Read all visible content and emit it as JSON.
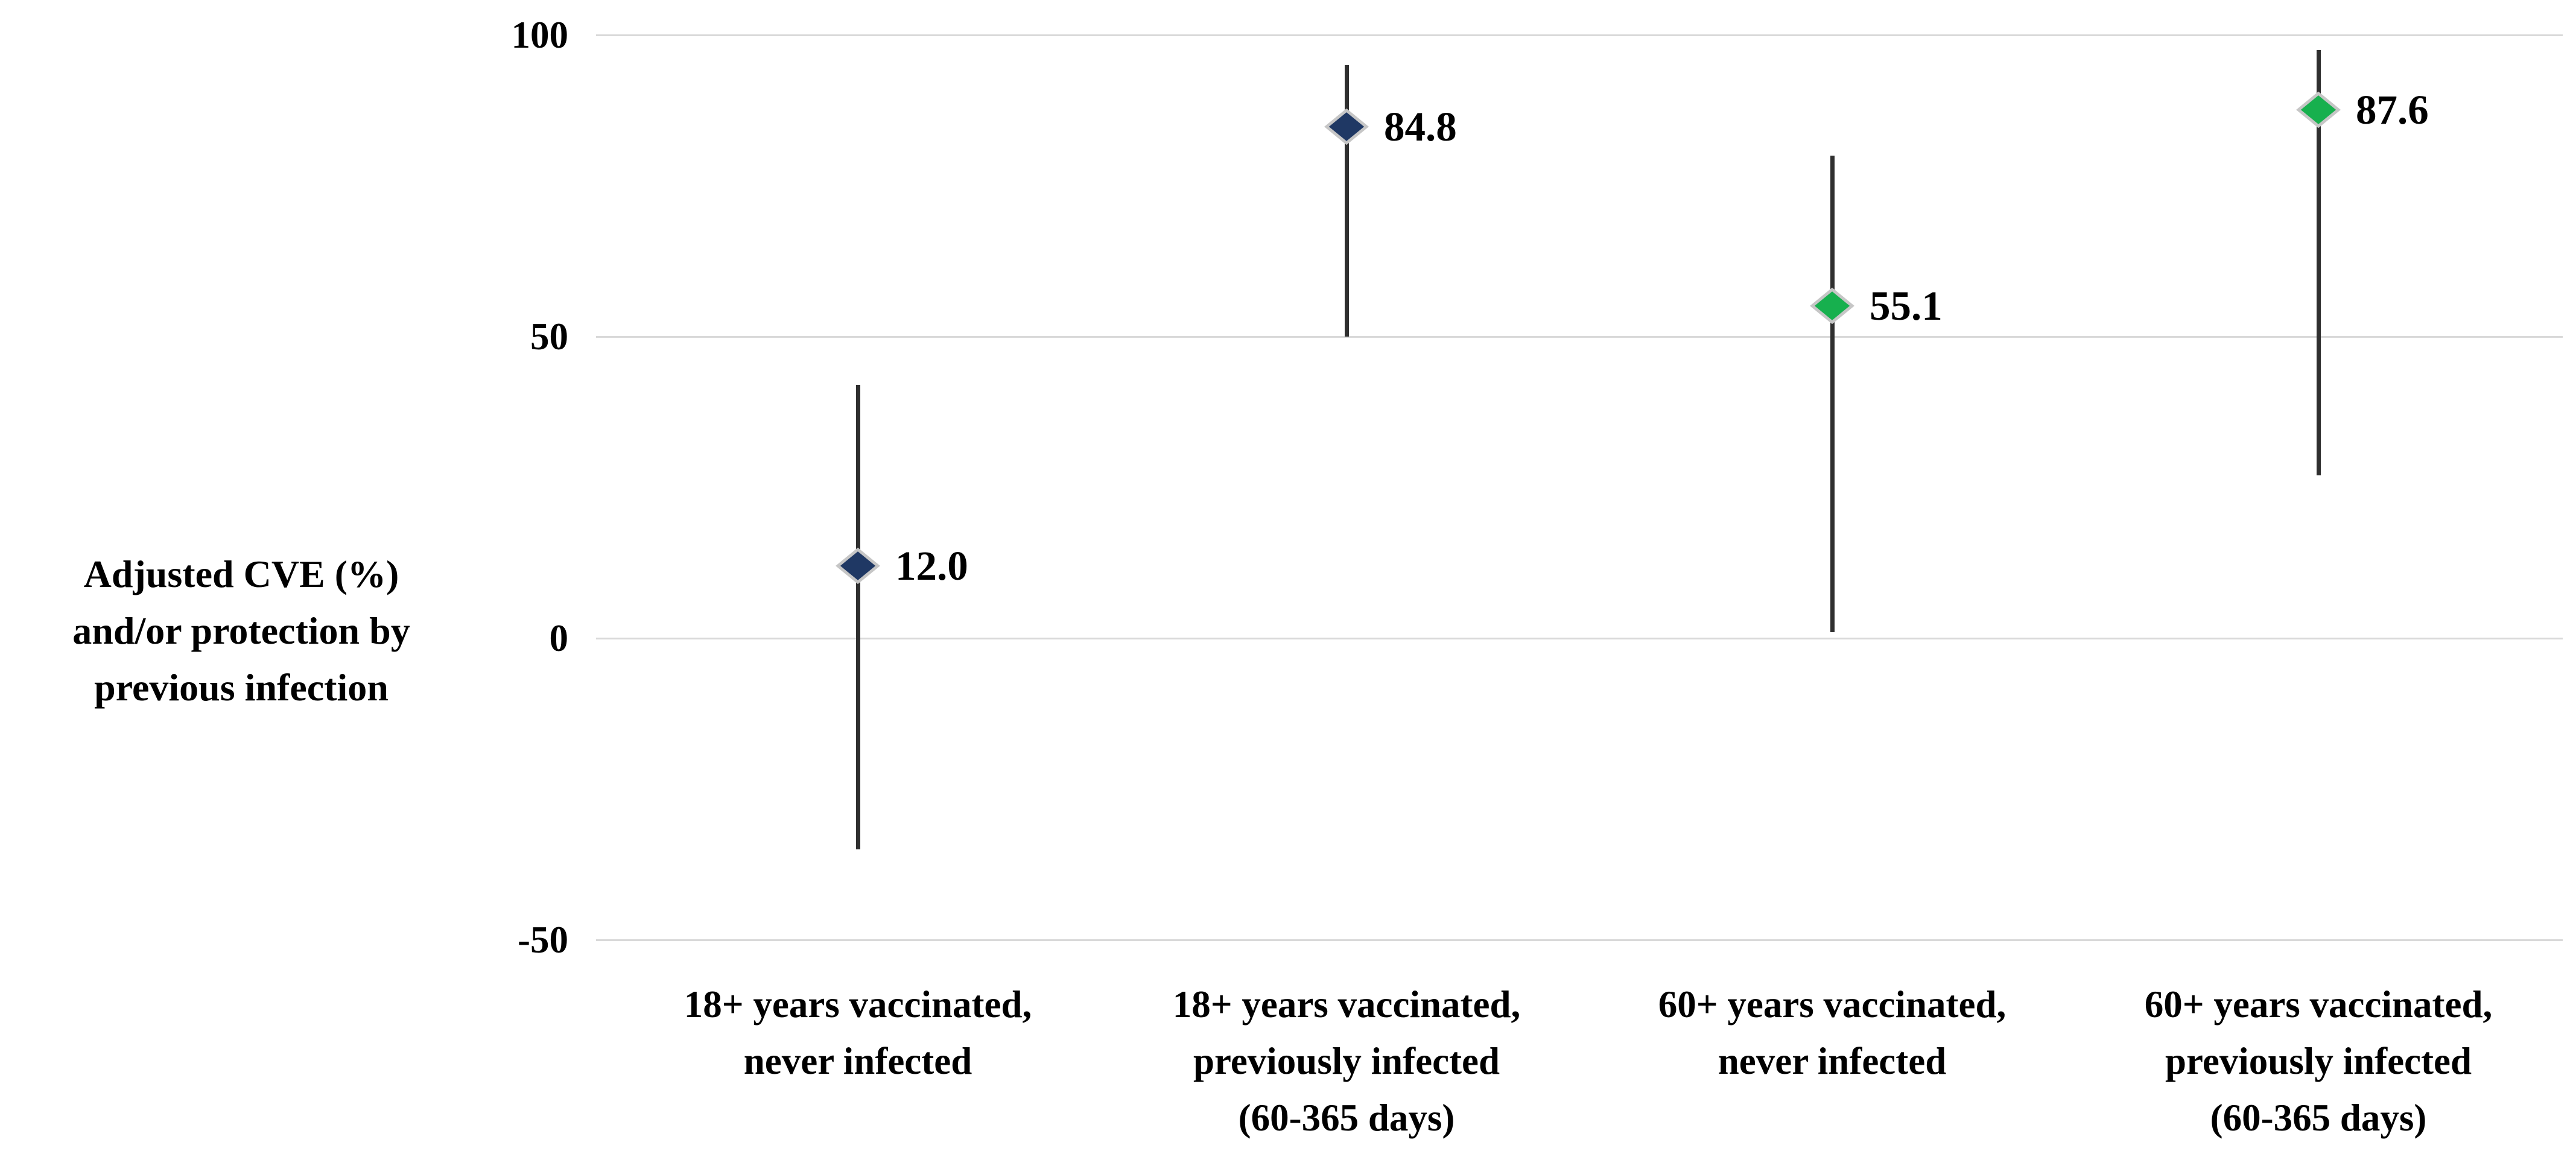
{
  "figure": {
    "background": "#ffffff",
    "y_axis_title": "Adjusted CVE (%)\nand/or protection by\nprevious infection"
  },
  "colors": {
    "navy": "#1f3864",
    "green": "#17b04e",
    "marker_outline": "#c6c6c6",
    "error_bar": "#2f2f2f",
    "gridline": "#d9d9d9",
    "text": "#000000"
  },
  "chart_data": {
    "type": "scatter",
    "title": "",
    "xlabel": "",
    "ylabel": "Adjusted CVE (%) and/or protection by previous infection",
    "ylim": [
      -50,
      100
    ],
    "yticks": [
      {
        "value": 100,
        "label": "100"
      },
      {
        "value": 50,
        "label": "50"
      },
      {
        "value": 0,
        "label": "0"
      },
      {
        "value": -50,
        "label": "-50"
      }
    ],
    "grid": true,
    "legend_position": "none",
    "marker": "diamond",
    "categories": [
      "18+ years vaccinated,\nnever infected",
      "18+ years vaccinated,\npreviously infected\n(60-365 days)",
      "60+ years vaccinated,\nnever infected",
      "60+ years vaccinated,\npreviously infected\n(60-365 days)"
    ],
    "series": [
      {
        "name": "18+ years vaccinated",
        "color": "#1f3864",
        "points": [
          {
            "category_index": 0,
            "value": 12.0,
            "value_label": "12.0",
            "ci_low": -35,
            "ci_high": 42
          },
          {
            "category_index": 1,
            "value": 84.8,
            "value_label": "84.8",
            "ci_low": 50,
            "ci_high": 95
          }
        ]
      },
      {
        "name": "60+ years vaccinated",
        "color": "#17b04e",
        "points": [
          {
            "category_index": 2,
            "value": 55.1,
            "value_label": "55.1",
            "ci_low": 1,
            "ci_high": 80
          },
          {
            "category_index": 3,
            "value": 87.6,
            "value_label": "87.6",
            "ci_low": 27,
            "ci_high": 97.5
          }
        ]
      }
    ]
  }
}
